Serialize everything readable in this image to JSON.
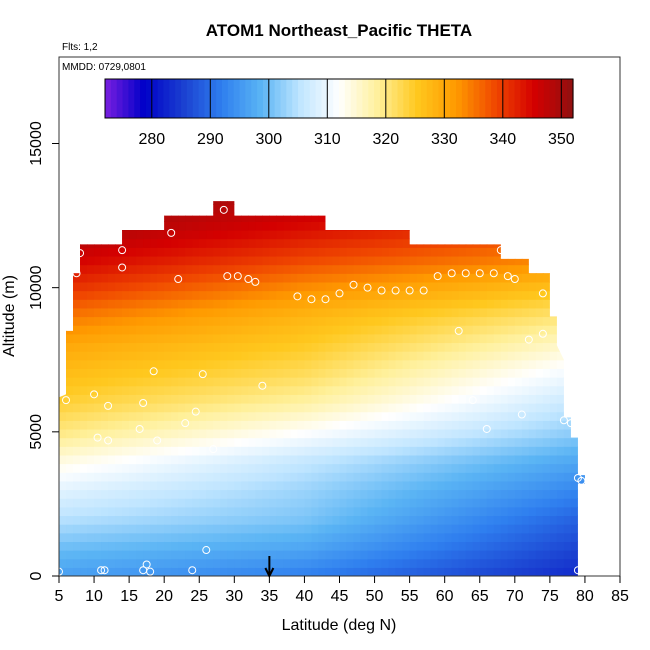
{
  "chart_data": {
    "type": "heatmap",
    "title": "ATOM1 Northeast_Pacific THETA",
    "annotations": {
      "flights": "Flts: 1,2",
      "dates": "MMDD: 0729,0801"
    },
    "xlabel": "Latitude (deg N)",
    "ylabel": "Altitude (m)",
    "xlim": [
      5,
      85
    ],
    "ylim": [
      0,
      18000
    ],
    "x_ticks": [
      5,
      10,
      15,
      20,
      25,
      30,
      35,
      40,
      45,
      50,
      55,
      60,
      65,
      70,
      75,
      80,
      85
    ],
    "y_ticks": [
      0,
      5000,
      10000,
      15000
    ],
    "colorbar": {
      "min": 272,
      "max": 352,
      "ticks": [
        280,
        290,
        300,
        310,
        320,
        330,
        340,
        350
      ],
      "colors": [
        "#7a1fe0",
        "#0000c8",
        "#1a3fd0",
        "#2f7fef",
        "#5ab4f4",
        "#bfe5ff",
        "#ffffff",
        "#fff09a",
        "#ffc81e",
        "#ff9a00",
        "#f04800",
        "#d40000",
        "#901010"
      ]
    },
    "marker_latitude": 35,
    "data_extent": [
      [
        5,
        0
      ],
      [
        5,
        6200
      ],
      [
        6,
        6300
      ],
      [
        6,
        8500
      ],
      [
        7,
        8500
      ],
      [
        7,
        10500
      ],
      [
        8,
        10500
      ],
      [
        8,
        11500
      ],
      [
        14,
        11500
      ],
      [
        14,
        12000
      ],
      [
        20,
        12000
      ],
      [
        20,
        12500
      ],
      [
        27,
        12500
      ],
      [
        27,
        13000
      ],
      [
        30,
        13000
      ],
      [
        30,
        12500
      ],
      [
        43,
        12500
      ],
      [
        43,
        12000
      ],
      [
        55,
        12000
      ],
      [
        55,
        11500
      ],
      [
        68,
        11500
      ],
      [
        68,
        11000
      ],
      [
        72,
        11000
      ],
      [
        72,
        10500
      ],
      [
        75,
        10500
      ],
      [
        75,
        9000
      ],
      [
        76,
        9000
      ],
      [
        76,
        8000
      ],
      [
        77,
        7500
      ],
      [
        77,
        5500
      ],
      [
        78,
        5500
      ],
      [
        78,
        4800
      ],
      [
        79,
        4800
      ],
      [
        79,
        3500
      ],
      [
        80,
        3500
      ],
      [
        80,
        3200
      ],
      [
        79,
        3200
      ],
      [
        79,
        0
      ],
      [
        5,
        0
      ]
    ],
    "theta_levels": [
      {
        "alt": 0,
        "lat": [
          5,
          40,
          79
        ],
        "theta": [
          296,
          292,
          283
        ]
      },
      {
        "alt": 1000,
        "lat": [
          5,
          40,
          79
        ],
        "theta": [
          300,
          297,
          286
        ]
      },
      {
        "alt": 2000,
        "lat": [
          5,
          40,
          79
        ],
        "theta": [
          305,
          301,
          289
        ]
      },
      {
        "alt": 3000,
        "lat": [
          5,
          40,
          79
        ],
        "theta": [
          309,
          303,
          293
        ]
      },
      {
        "alt": 4000,
        "lat": [
          5,
          40,
          79
        ],
        "theta": [
          314,
          306,
          297
        ]
      },
      {
        "alt": 5000,
        "lat": [
          5,
          40,
          79
        ],
        "theta": [
          320,
          312,
          302
        ]
      },
      {
        "alt": 6000,
        "lat": [
          5,
          40,
          79
        ],
        "theta": [
          324,
          318,
          306
        ]
      },
      {
        "alt": 7000,
        "lat": [
          5,
          40,
          79
        ],
        "theta": [
          327,
          322,
          310
        ]
      },
      {
        "alt": 8000,
        "lat": [
          5,
          40,
          79
        ],
        "theta": [
          330,
          325,
          315
        ]
      },
      {
        "alt": 9000,
        "lat": [
          5,
          40,
          79
        ],
        "theta": [
          335,
          328,
          320
        ]
      },
      {
        "alt": 10000,
        "lat": [
          5,
          40,
          79
        ],
        "theta": [
          341,
          333,
          326
        ]
      },
      {
        "alt": 11000,
        "lat": [
          5,
          40,
          79
        ],
        "theta": [
          346,
          339,
          333
        ]
      },
      {
        "alt": 12000,
        "lat": [
          5,
          40,
          79
        ],
        "theta": [
          350,
          344,
          338
        ]
      },
      {
        "alt": 13000,
        "lat": [
          5,
          40,
          79
        ],
        "theta": [
          351,
          348,
          342
        ]
      }
    ],
    "observations": [
      {
        "lat": 5,
        "alt": 150
      },
      {
        "lat": 6,
        "alt": 6100
      },
      {
        "lat": 7.5,
        "alt": 10500
      },
      {
        "lat": 8,
        "alt": 11200
      },
      {
        "lat": 10,
        "alt": 6300
      },
      {
        "lat": 10.5,
        "alt": 4800
      },
      {
        "lat": 11,
        "alt": 200
      },
      {
        "lat": 11.5,
        "alt": 200
      },
      {
        "lat": 12,
        "alt": 4700
      },
      {
        "lat": 12,
        "alt": 5900
      },
      {
        "lat": 14,
        "alt": 10700
      },
      {
        "lat": 14,
        "alt": 11300
      },
      {
        "lat": 16.5,
        "alt": 5100
      },
      {
        "lat": 17,
        "alt": 6000
      },
      {
        "lat": 17,
        "alt": 200
      },
      {
        "lat": 17.5,
        "alt": 400
      },
      {
        "lat": 18,
        "alt": 150
      },
      {
        "lat": 18.5,
        "alt": 7100
      },
      {
        "lat": 19,
        "alt": 4700
      },
      {
        "lat": 21,
        "alt": 11900
      },
      {
        "lat": 22,
        "alt": 10300
      },
      {
        "lat": 23,
        "alt": 5300
      },
      {
        "lat": 24,
        "alt": 200
      },
      {
        "lat": 24.5,
        "alt": 5700
      },
      {
        "lat": 25.5,
        "alt": 7000
      },
      {
        "lat": 26,
        "alt": 900
      },
      {
        "lat": 27,
        "alt": 4400
      },
      {
        "lat": 28.5,
        "alt": 12700
      },
      {
        "lat": 29,
        "alt": 10400
      },
      {
        "lat": 30.5,
        "alt": 10400
      },
      {
        "lat": 31,
        "alt": 12700
      },
      {
        "lat": 32,
        "alt": 10300
      },
      {
        "lat": 33,
        "alt": 10200
      },
      {
        "lat": 34,
        "alt": 6600
      },
      {
        "lat": 39,
        "alt": 9700
      },
      {
        "lat": 41,
        "alt": 9600
      },
      {
        "lat": 43,
        "alt": 9600
      },
      {
        "lat": 45,
        "alt": 9800
      },
      {
        "lat": 47,
        "alt": 10100
      },
      {
        "lat": 49,
        "alt": 10000
      },
      {
        "lat": 51,
        "alt": 9900
      },
      {
        "lat": 53,
        "alt": 9900
      },
      {
        "lat": 55,
        "alt": 9900
      },
      {
        "lat": 57,
        "alt": 9900
      },
      {
        "lat": 59,
        "alt": 10400
      },
      {
        "lat": 61,
        "alt": 10500
      },
      {
        "lat": 62,
        "alt": 8500
      },
      {
        "lat": 63,
        "alt": 10500
      },
      {
        "lat": 64,
        "alt": 6100
      },
      {
        "lat": 65,
        "alt": 10500
      },
      {
        "lat": 66,
        "alt": 5100
      },
      {
        "lat": 67,
        "alt": 10500
      },
      {
        "lat": 68,
        "alt": 11300
      },
      {
        "lat": 69,
        "alt": 10400
      },
      {
        "lat": 70,
        "alt": 10300
      },
      {
        "lat": 71,
        "alt": 5600
      },
      {
        "lat": 72,
        "alt": 8200
      },
      {
        "lat": 74,
        "alt": 8400
      },
      {
        "lat": 74,
        "alt": 9800
      },
      {
        "lat": 76,
        "alt": 9200
      },
      {
        "lat": 76,
        "alt": 9700
      },
      {
        "lat": 77,
        "alt": 5400
      },
      {
        "lat": 78,
        "alt": 5300
      },
      {
        "lat": 79,
        "alt": 3400
      },
      {
        "lat": 79.5,
        "alt": 3300
      },
      {
        "lat": 79,
        "alt": 200
      }
    ]
  }
}
